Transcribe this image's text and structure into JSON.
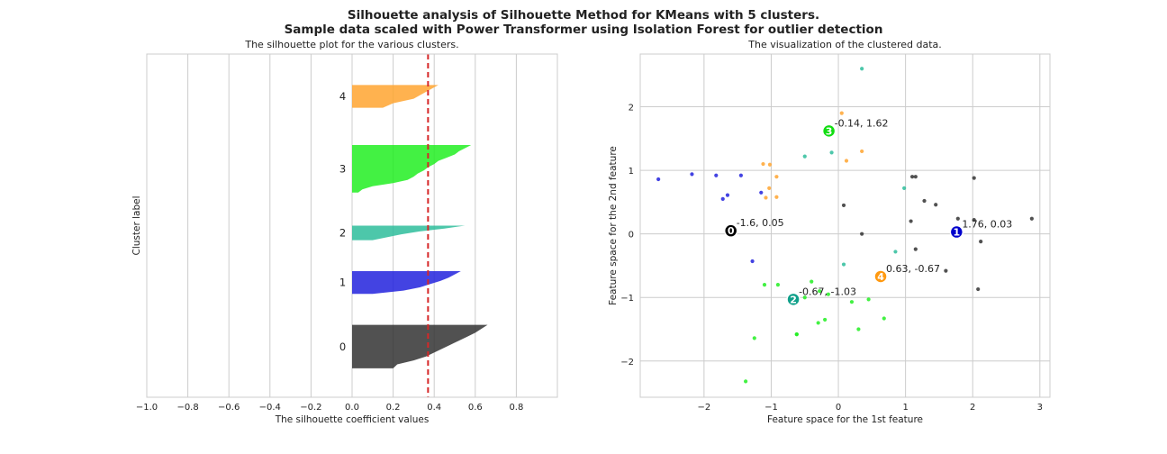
{
  "suptitle_line1": "Silhouette analysis of Silhouette Method for KMeans with 5 clusters.",
  "suptitle_line2": "Sample data scaled with Power Transformer using Isolation Forest for outlier detection",
  "chart_data": [
    {
      "type": "area",
      "title": "The silhouette plot for the various clusters.",
      "xlabel": "The silhouette coefficient values",
      "ylabel": "Cluster label",
      "xlim": [
        -1.0,
        1.0
      ],
      "ylim": [
        0,
        83
      ],
      "xticks": [
        "−1.0",
        "−0.8",
        "−0.6",
        "−0.4",
        "−0.2",
        "0.0",
        "0.2",
        "0.4",
        "0.6",
        "0.8"
      ],
      "xtick_values": [
        -1.0,
        -0.8,
        -0.6,
        -0.4,
        -0.2,
        0.0,
        0.2,
        0.4,
        0.6,
        0.8
      ],
      "grid": true,
      "average_silhouette": 0.37,
      "average_line_color": "#d62728",
      "clusters": [
        {
          "label": "0",
          "color": "#333333",
          "y_lower": 7,
          "y_upper": 17.5,
          "values": [
            0.66,
            0.63,
            0.6,
            0.56,
            0.52,
            0.48,
            0.44,
            0.4,
            0.36,
            0.3,
            0.22,
            0.2
          ]
        },
        {
          "label": "1",
          "color": "#2222dd",
          "y_lower": 25,
          "y_upper": 30.5,
          "values": [
            0.53,
            0.5,
            0.47,
            0.43,
            0.38,
            0.33,
            0.25,
            0.1
          ]
        },
        {
          "label": "2",
          "color": "#2ebd9b",
          "y_lower": 38,
          "y_upper": 41.5,
          "values": [
            0.55,
            0.45,
            0.33,
            0.24,
            0.17,
            0.1
          ]
        },
        {
          "label": "3",
          "color": "#22ee22",
          "y_lower": 49.5,
          "y_upper": 61,
          "values": [
            0.58,
            0.55,
            0.52,
            0.5,
            0.46,
            0.42,
            0.4,
            0.37,
            0.35,
            0.32,
            0.3,
            0.27,
            0.2,
            0.1,
            0.05,
            0.03
          ]
        },
        {
          "label": "4",
          "color": "#ffa530",
          "y_lower": 70,
          "y_upper": 75.5,
          "values": [
            0.42,
            0.38,
            0.34,
            0.3,
            0.2,
            0.15
          ]
        }
      ]
    },
    {
      "type": "scatter",
      "title": "The visualization of the clustered data.",
      "xlabel": "Feature space for the 1st feature",
      "ylabel": "Feature space for the 2nd feature",
      "xlim": [
        -2.95,
        3.15
      ],
      "ylim": [
        -2.57,
        2.83
      ],
      "xticks": [
        "−2",
        "−1",
        "0",
        "1",
        "2",
        "3"
      ],
      "xtick_values": [
        -2,
        -1,
        0,
        1,
        2,
        3
      ],
      "yticks": [
        "−2",
        "−1",
        "0",
        "1",
        "2"
      ],
      "ytick_values": [
        -2,
        -1,
        0,
        1,
        2
      ],
      "grid": true,
      "series": [
        {
          "cluster": "0",
          "color": "#333333",
          "x": [
            1.1,
            1.15,
            1.28,
            1.45,
            1.78,
            2.02,
            2.02,
            2.88,
            1.08,
            0.08,
            0.35,
            1.15,
            1.6,
            2.08,
            2.12
          ],
          "y": [
            0.9,
            0.9,
            0.52,
            0.46,
            0.24,
            0.88,
            0.22,
            0.24,
            0.2,
            0.45,
            0.0,
            -0.24,
            -0.58,
            -0.87,
            -0.12
          ]
        },
        {
          "cluster": "1",
          "color": "#2222dd",
          "x": [
            -2.68,
            -2.18,
            -1.82,
            -1.72,
            -1.65,
            -1.45,
            -1.15,
            -1.28
          ],
          "y": [
            0.86,
            0.94,
            0.92,
            0.55,
            0.61,
            0.92,
            0.65,
            -0.43
          ]
        },
        {
          "cluster": "2",
          "color": "#2ebd9b",
          "x": [
            0.35,
            -0.5,
            -0.1,
            0.08,
            0.98,
            0.85
          ],
          "y": [
            2.6,
            1.22,
            1.28,
            -0.48,
            0.72,
            -0.28
          ]
        },
        {
          "cluster": "3",
          "color": "#22ee22",
          "x": [
            -1.1,
            -0.9,
            -0.4,
            -0.28,
            -0.15,
            -0.5,
            -0.2,
            -0.3,
            -0.62,
            -0.62,
            0.2,
            0.45,
            0.68,
            0.3,
            -1.25,
            -1.38
          ],
          "y": [
            -0.8,
            -0.8,
            -0.75,
            -0.9,
            -0.95,
            -1.0,
            -1.35,
            -1.4,
            -1.58,
            -1.58,
            -1.07,
            -1.03,
            -1.33,
            -1.5,
            -1.64,
            -2.32
          ]
        },
        {
          "cluster": "4",
          "color": "#ffa530",
          "x": [
            -1.12,
            -1.02,
            -0.92,
            -1.03,
            -0.92,
            -1.08,
            0.05,
            0.12,
            0.35
          ],
          "y": [
            1.1,
            1.09,
            0.9,
            0.72,
            0.58,
            0.57,
            1.9,
            1.15,
            1.3
          ]
        }
      ],
      "centroids": [
        {
          "label": "0",
          "x": -1.6,
          "y": 0.05,
          "text": "-1.6, 0.05",
          "color": "#000000"
        },
        {
          "label": "1",
          "x": 1.76,
          "y": 0.03,
          "text": "1.76, 0.03",
          "color": "#0000cc"
        },
        {
          "label": "2",
          "x": -0.67,
          "y": -1.03,
          "text": "-0.67, -1.03",
          "color": "#10a08a"
        },
        {
          "label": "3",
          "x": -0.14,
          "y": 1.62,
          "text": "-0.14, 1.62",
          "color": "#11dd11"
        },
        {
          "label": "4",
          "x": 0.63,
          "y": -0.67,
          "text": "0.63, -0.67",
          "color": "#ff9910"
        }
      ]
    }
  ]
}
